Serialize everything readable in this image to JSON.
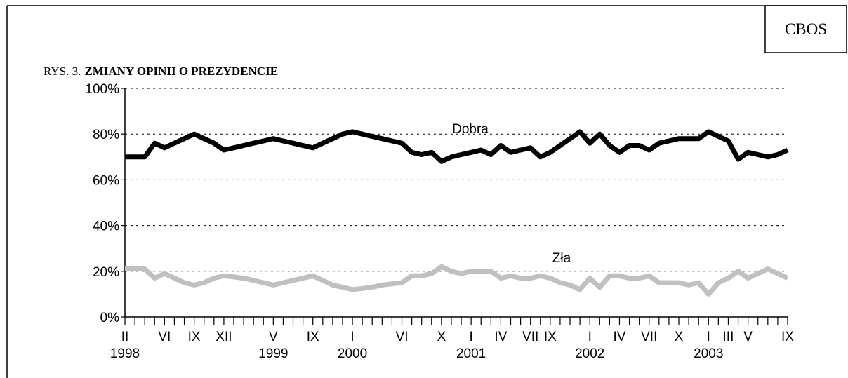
{
  "chart_data": {
    "type": "line",
    "source": "CBOS",
    "figure_label": "RYS. 3.",
    "title": "ZMIANY OPINII O PREZYDENCIE",
    "categories": [
      "II",
      null,
      null,
      null,
      "VI",
      null,
      null,
      "IX",
      null,
      null,
      "XII",
      null,
      null,
      null,
      null,
      "V",
      null,
      null,
      null,
      "IX",
      null,
      null,
      null,
      "I",
      null,
      null,
      null,
      null,
      "VI",
      null,
      null,
      null,
      "X",
      null,
      null,
      "I",
      null,
      null,
      "IV",
      null,
      null,
      "VII",
      null,
      "IX",
      null,
      null,
      null,
      "I",
      null,
      null,
      "IV",
      null,
      null,
      "VII",
      null,
      null,
      "X",
      null,
      null,
      "I",
      null,
      "III",
      null,
      "V",
      null,
      null,
      null,
      "IX"
    ],
    "years": [
      "1998",
      null,
      null,
      null,
      null,
      null,
      null,
      null,
      null,
      null,
      null,
      null,
      null,
      null,
      null,
      "1999",
      null,
      null,
      null,
      null,
      null,
      null,
      null,
      "2000",
      null,
      null,
      null,
      null,
      null,
      null,
      null,
      null,
      null,
      null,
      null,
      "2001",
      null,
      null,
      null,
      null,
      null,
      null,
      null,
      null,
      null,
      null,
      null,
      "2002",
      null,
      null,
      null,
      null,
      null,
      null,
      null,
      null,
      null,
      null,
      null,
      "2003",
      null,
      null,
      null,
      null,
      null,
      null,
      null,
      null
    ],
    "series": [
      {
        "name": "Dobra",
        "color": "#000000",
        "values": [
          70,
          70,
          70,
          76,
          74,
          76,
          78,
          80,
          78,
          76,
          73,
          74,
          75,
          76,
          77,
          78,
          77,
          76,
          75,
          74,
          76,
          78,
          80,
          81,
          80,
          79,
          78,
          77,
          76,
          72,
          71,
          72,
          68,
          70,
          71,
          72,
          73,
          71,
          75,
          72,
          73,
          74,
          70,
          72,
          75,
          78,
          81,
          76,
          80,
          75,
          72,
          75,
          75,
          73,
          76,
          77,
          78,
          78,
          78,
          81,
          79,
          77,
          69,
          72,
          71,
          70,
          71,
          73
        ]
      },
      {
        "name": "Zła",
        "color": "#c0c0c0",
        "values": [
          21,
          21,
          21,
          17,
          19,
          17,
          15,
          14,
          15,
          17,
          18,
          17.5,
          17,
          16,
          15,
          14,
          15,
          16,
          17,
          18,
          16,
          14,
          13,
          12,
          12.5,
          13,
          14,
          14.5,
          15,
          18,
          18,
          19,
          22,
          20,
          19,
          20,
          20,
          20,
          17,
          18,
          17,
          17,
          18,
          17,
          15,
          14,
          12,
          17,
          13,
          18,
          18,
          17,
          17,
          18,
          15,
          15,
          15,
          14,
          15,
          10,
          15,
          17,
          20,
          17,
          19,
          21,
          19,
          17
        ]
      }
    ],
    "ylim": [
      0,
      100
    ],
    "yticks": [
      {
        "value": 0,
        "label": "0%"
      },
      {
        "value": 20,
        "label": "20%"
      },
      {
        "value": 40,
        "label": "40%"
      },
      {
        "value": 60,
        "label": "60%"
      },
      {
        "value": 80,
        "label": "80%"
      },
      {
        "value": 100,
        "label": "100%"
      }
    ],
    "grid": true
  }
}
